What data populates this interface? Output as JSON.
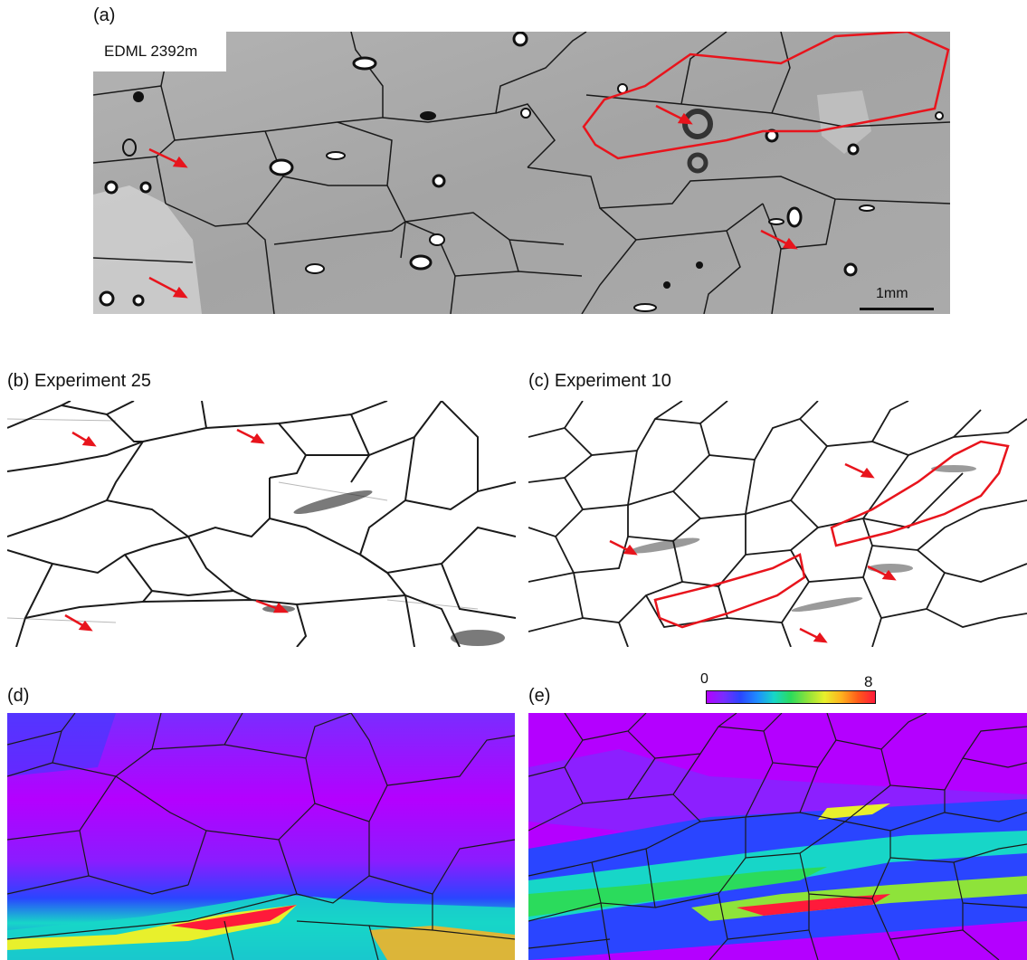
{
  "figure": {
    "panel_a": {
      "label": "(a)",
      "sample": "EDML  2392m",
      "scale_bar": "1mm"
    },
    "panel_b": {
      "label": "(b) Experiment 25"
    },
    "panel_c": {
      "label": "(c) Experiment 10"
    },
    "panel_d": {
      "label": "(d)"
    },
    "panel_e": {
      "label": "(e)"
    },
    "colorbar": {
      "min": "0",
      "max": "8",
      "colors": [
        "#b400ff",
        "#2a45ff",
        "#17d6c8",
        "#2bdb5c",
        "#e8f02c",
        "#ff5a1a",
        "#ff1a3a"
      ]
    },
    "colors": {
      "annotation": "#e8141c",
      "boundary": "#111111"
    }
  }
}
